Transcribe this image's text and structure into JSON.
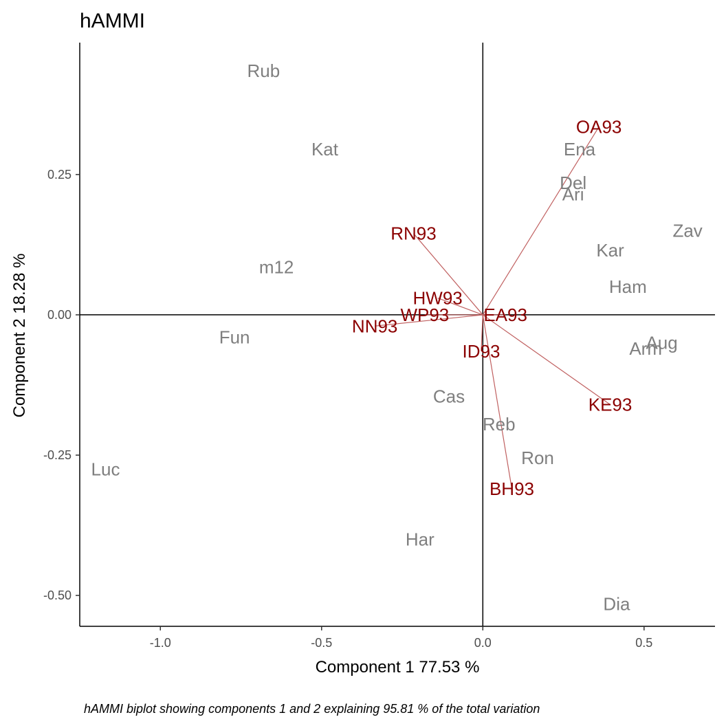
{
  "chart_data": {
    "type": "scatter",
    "title": "hAMMI",
    "xlabel": "Component 1 77.53 %",
    "ylabel": "Component 2 18.28 %",
    "caption": "hAMMI biplot showing components 1 and 2 explaining  95.81 % of the total variation",
    "xlim": [
      -1.25,
      0.72
    ],
    "ylim": [
      -0.555,
      0.485
    ],
    "x_ticks": [
      -1.0,
      -0.5,
      0.0,
      0.5
    ],
    "x_tick_labels": [
      "-1.0",
      "-0.5",
      "0.0",
      "0.5"
    ],
    "y_ticks": [
      -0.5,
      -0.25,
      0.0,
      0.25
    ],
    "y_tick_labels": [
      "-0.50",
      "-0.25",
      "0.00",
      "0.25"
    ],
    "grid": false,
    "colors": {
      "genotype": "#7f7f7f",
      "environment": "#8b0000",
      "vector": "#c06060",
      "axis": "#000000"
    },
    "genotypes": [
      {
        "name": "Rub",
        "x": -0.68,
        "y": 0.435
      },
      {
        "name": "Kat",
        "x": -0.49,
        "y": 0.295
      },
      {
        "name": "m12",
        "x": -0.64,
        "y": 0.085
      },
      {
        "name": "Fun",
        "x": -0.77,
        "y": -0.04
      },
      {
        "name": "Luc",
        "x": -1.17,
        "y": -0.275
      },
      {
        "name": "Cas",
        "x": -0.105,
        "y": -0.145
      },
      {
        "name": "Har",
        "x": -0.195,
        "y": -0.4
      },
      {
        "name": "Reb",
        "x": 0.05,
        "y": -0.195
      },
      {
        "name": "Ron",
        "x": 0.17,
        "y": -0.255
      },
      {
        "name": "Dia",
        "x": 0.415,
        "y": -0.515
      },
      {
        "name": "Ena",
        "x": 0.3,
        "y": 0.295
      },
      {
        "name": "Del",
        "x": 0.28,
        "y": 0.235
      },
      {
        "name": "Ari",
        "x": 0.28,
        "y": 0.215
      },
      {
        "name": "Zav",
        "x": 0.635,
        "y": 0.15
      },
      {
        "name": "Kar",
        "x": 0.395,
        "y": 0.115
      },
      {
        "name": "Ham",
        "x": 0.45,
        "y": 0.05
      },
      {
        "name": "Aug",
        "x": 0.555,
        "y": -0.05
      },
      {
        "name": "Arm",
        "x": 0.505,
        "y": -0.06
      }
    ],
    "environments": [
      {
        "name": "OA93",
        "x": 0.36,
        "y": 0.335
      },
      {
        "name": "RN93",
        "x": -0.215,
        "y": 0.145
      },
      {
        "name": "HW93",
        "x": -0.14,
        "y": 0.03
      },
      {
        "name": "WP93",
        "x": -0.18,
        "y": 0.0
      },
      {
        "name": "NN93",
        "x": -0.335,
        "y": -0.02
      },
      {
        "name": "EA93",
        "x": 0.07,
        "y": 0.0
      },
      {
        "name": "ID93",
        "x": -0.005,
        "y": -0.065
      },
      {
        "name": "KE93",
        "x": 0.395,
        "y": -0.16
      },
      {
        "name": "BH93",
        "x": 0.09,
        "y": -0.31
      }
    ]
  }
}
